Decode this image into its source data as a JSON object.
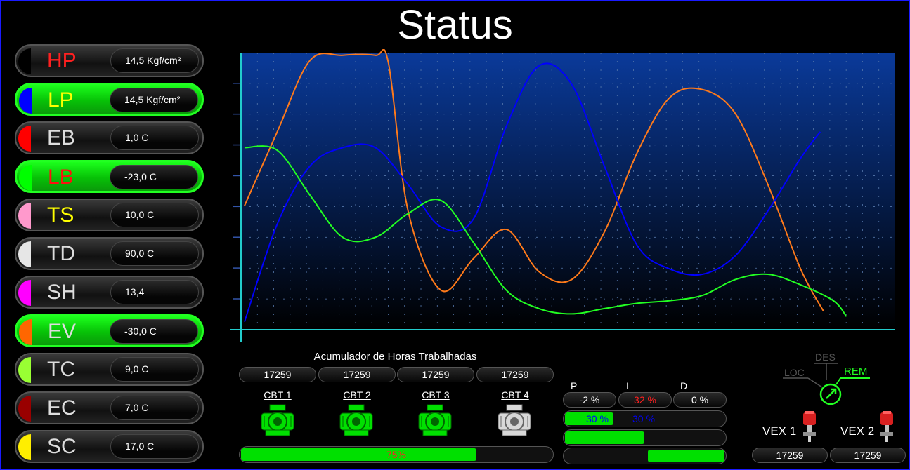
{
  "title": "Status",
  "sensors": [
    {
      "label": "HP",
      "value": "14,5 Kgf/cm²",
      "color": "#000000",
      "label_color": "#ff2020",
      "active": false
    },
    {
      "label": "LP",
      "value": "14,5 Kgf/cm²",
      "color": "#0000ff",
      "label_color": "#ffff00",
      "active": true
    },
    {
      "label": "EB",
      "value": "1,0 C",
      "color": "#ff0000",
      "label_color": "#dddddd",
      "active": false
    },
    {
      "label": "LB",
      "value": "-23,0 C",
      "color": "#00ff00",
      "label_color": "#ff1010",
      "active": true
    },
    {
      "label": "TS",
      "value": "10,0 C",
      "color": "#ff99cc",
      "label_color": "#ffff00",
      "active": false
    },
    {
      "label": "TD",
      "value": "90,0 C",
      "color": "#e6e6e6",
      "label_color": "#dddddd",
      "active": false
    },
    {
      "label": "SH",
      "value": "13,4",
      "color": "#ff00ff",
      "label_color": "#dddddd",
      "active": false
    },
    {
      "label": "EV",
      "value": "-30,0 C",
      "color": "#ff6600",
      "label_color": "#dddddd",
      "active": true
    },
    {
      "label": "TC",
      "value": "9,0 C",
      "color": "#99ff33",
      "label_color": "#dddddd",
      "active": false
    },
    {
      "label": "EC",
      "value": "7,0 C",
      "color": "#990000",
      "label_color": "#dddddd",
      "active": false
    },
    {
      "label": "SC",
      "value": "17,0 C",
      "color": "#ffee00",
      "label_color": "#dddddd",
      "active": false
    }
  ],
  "chart_data": {
    "type": "line",
    "grid": true,
    "series": [
      {
        "color": "#ff7a1a",
        "x": [
          0,
          5,
          10,
          15,
          20,
          22,
          25,
          30,
          35,
          40,
          45,
          50,
          55,
          60,
          65,
          70,
          75,
          80,
          85,
          88.5
        ],
        "values": [
          42,
          70,
          97,
          99,
          99,
          96,
          40,
          10,
          22,
          33,
          17,
          14,
          32,
          62,
          83,
          86,
          77,
          50,
          18,
          2
        ]
      },
      {
        "color": "#0000ff",
        "x": [
          0,
          5,
          10,
          15,
          20,
          25,
          30,
          35,
          40,
          45,
          50,
          55,
          60,
          65,
          70,
          75,
          80,
          85,
          88
        ],
        "values": [
          -2,
          35,
          57,
          64,
          64,
          50,
          34,
          37,
          72,
          95,
          88,
          57,
          27,
          18,
          16,
          23,
          40,
          60,
          70
        ]
      },
      {
        "color": "#22ff22",
        "x": [
          0,
          5,
          10,
          15,
          20,
          25,
          30,
          35,
          40,
          45,
          50,
          55,
          60,
          65,
          70,
          75,
          80,
          85,
          90,
          92
        ],
        "values": [
          64,
          63,
          46,
          30,
          30,
          39,
          44,
          28,
          10,
          3,
          1,
          3,
          5,
          6,
          8,
          14,
          16,
          12,
          6,
          0
        ]
      }
    ],
    "xlim": [
      0,
      100
    ],
    "ylim": [
      -5,
      100
    ]
  },
  "hours": {
    "title": "Acumulador de Horas Trabalhadas",
    "values": [
      "17259",
      "17259",
      "17259",
      "17259"
    ],
    "labels": [
      "CBT 1",
      "CBT 2",
      "CBT 3",
      "CBT 4"
    ],
    "states": [
      true,
      true,
      true,
      false
    ],
    "progress_label": "75%",
    "progress": 0.75
  },
  "pid": {
    "p_label": "P",
    "i_label": "I",
    "d_label": "D",
    "p_value": "-2 %",
    "i_value": "32 %",
    "d_value": "0 %",
    "bar1_a": "30 %",
    "bar1_b": "30 %",
    "bar1_fill": 0.3,
    "bar2_fill": 0.49,
    "bar3_fill": 0.47
  },
  "mode": {
    "loc": "LOC",
    "des": "DES",
    "rem": "REM"
  },
  "vex": {
    "labels": [
      "VEX 1",
      "VEX 2"
    ],
    "values": [
      "17259",
      "17259"
    ]
  },
  "colors": {
    "active_green": "#00e000",
    "chart_bg_top": "#0a3a9a",
    "axis": "#22cccc"
  }
}
